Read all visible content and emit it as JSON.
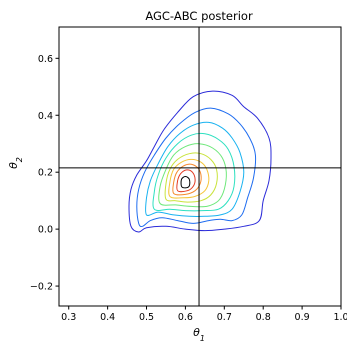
{
  "chart_data": {
    "type": "contour",
    "title": "AGC-ABC posterior",
    "xlabel": "θ1",
    "ylabel": "θ2",
    "xlim": [
      0.275,
      1.0
    ],
    "ylim": [
      -0.27,
      0.71
    ],
    "xticks": [
      "0.3",
      "0.4",
      "0.5",
      "0.6",
      "0.7",
      "0.8",
      "0.9",
      "1.0"
    ],
    "yticks": [
      "−0.2",
      "0.0",
      "0.2",
      "0.4",
      "0.6"
    ],
    "grid": false,
    "reference_lines": {
      "x": 0.635,
      "y": 0.215
    },
    "density_peak": {
      "x": 0.6,
      "y": 0.165
    },
    "contour_colors": [
      "#2b2bd9",
      "#1e6cf0",
      "#18b2f0",
      "#2de0c0",
      "#6ee87a",
      "#c9e33a",
      "#f5c53a",
      "#f58a2e",
      "#e33a22",
      "#000000"
    ],
    "contours": [
      {
        "level": 1,
        "color": "#2b2bd9",
        "points": [
          [
            0.46,
            0.01
          ],
          [
            0.455,
            0.08
          ],
          [
            0.46,
            0.14
          ],
          [
            0.475,
            0.19
          ],
          [
            0.5,
            0.24
          ],
          [
            0.52,
            0.29
          ],
          [
            0.545,
            0.35
          ],
          [
            0.58,
            0.41
          ],
          [
            0.62,
            0.465
          ],
          [
            0.67,
            0.485
          ],
          [
            0.72,
            0.47
          ],
          [
            0.75,
            0.43
          ],
          [
            0.785,
            0.39
          ],
          [
            0.815,
            0.32
          ],
          [
            0.82,
            0.25
          ],
          [
            0.815,
            0.17
          ],
          [
            0.8,
            0.1
          ],
          [
            0.79,
            0.03
          ],
          [
            0.75,
            0.01
          ],
          [
            0.7,
            0.0
          ],
          [
            0.65,
            -0.005
          ],
          [
            0.6,
            0.0
          ],
          [
            0.55,
            0.01
          ],
          [
            0.5,
            0.005
          ],
          [
            0.48,
            -0.01
          ]
        ]
      },
      {
        "level": 2,
        "color": "#1e6cf0",
        "points": [
          [
            0.48,
            0.02
          ],
          [
            0.475,
            0.08
          ],
          [
            0.48,
            0.14
          ],
          [
            0.495,
            0.2
          ],
          [
            0.52,
            0.26
          ],
          [
            0.55,
            0.32
          ],
          [
            0.585,
            0.37
          ],
          [
            0.625,
            0.41
          ],
          [
            0.665,
            0.425
          ],
          [
            0.71,
            0.405
          ],
          [
            0.74,
            0.37
          ],
          [
            0.765,
            0.32
          ],
          [
            0.78,
            0.26
          ],
          [
            0.775,
            0.18
          ],
          [
            0.76,
            0.11
          ],
          [
            0.745,
            0.05
          ],
          [
            0.72,
            0.03
          ],
          [
            0.69,
            0.035
          ],
          [
            0.66,
            0.03
          ],
          [
            0.62,
            0.02
          ],
          [
            0.58,
            0.03
          ],
          [
            0.54,
            0.04
          ],
          [
            0.51,
            0.03
          ],
          [
            0.49,
            0.01
          ]
        ]
      },
      {
        "level": 3,
        "color": "#18b2f0",
        "points": [
          [
            0.5,
            0.05
          ],
          [
            0.5,
            0.11
          ],
          [
            0.51,
            0.17
          ],
          [
            0.53,
            0.23
          ],
          [
            0.555,
            0.29
          ],
          [
            0.585,
            0.335
          ],
          [
            0.62,
            0.365
          ],
          [
            0.66,
            0.375
          ],
          [
            0.695,
            0.355
          ],
          [
            0.72,
            0.32
          ],
          [
            0.74,
            0.27
          ],
          [
            0.75,
            0.2
          ],
          [
            0.74,
            0.13
          ],
          [
            0.72,
            0.07
          ],
          [
            0.69,
            0.05
          ],
          [
            0.65,
            0.045
          ],
          [
            0.61,
            0.045
          ],
          [
            0.57,
            0.05
          ],
          [
            0.53,
            0.06
          ]
        ]
      },
      {
        "level": 4,
        "color": "#2de0c0",
        "points": [
          [
            0.52,
            0.07
          ],
          [
            0.52,
            0.13
          ],
          [
            0.53,
            0.19
          ],
          [
            0.55,
            0.25
          ],
          [
            0.58,
            0.3
          ],
          [
            0.615,
            0.33
          ],
          [
            0.65,
            0.335
          ],
          [
            0.685,
            0.315
          ],
          [
            0.71,
            0.28
          ],
          [
            0.725,
            0.22
          ],
          [
            0.725,
            0.15
          ],
          [
            0.71,
            0.1
          ],
          [
            0.685,
            0.07
          ],
          [
            0.645,
            0.065
          ],
          [
            0.6,
            0.065
          ],
          [
            0.56,
            0.07
          ]
        ]
      },
      {
        "level": 5,
        "color": "#6ee87a",
        "points": [
          [
            0.535,
            0.09
          ],
          [
            0.535,
            0.15
          ],
          [
            0.55,
            0.21
          ],
          [
            0.57,
            0.26
          ],
          [
            0.6,
            0.29
          ],
          [
            0.635,
            0.3
          ],
          [
            0.67,
            0.285
          ],
          [
            0.695,
            0.25
          ],
          [
            0.705,
            0.2
          ],
          [
            0.7,
            0.14
          ],
          [
            0.685,
            0.1
          ],
          [
            0.655,
            0.08
          ],
          [
            0.615,
            0.08
          ],
          [
            0.575,
            0.085
          ]
        ]
      },
      {
        "level": 6,
        "color": "#c9e33a",
        "points": [
          [
            0.55,
            0.105
          ],
          [
            0.55,
            0.16
          ],
          [
            0.56,
            0.21
          ],
          [
            0.58,
            0.245
          ],
          [
            0.61,
            0.265
          ],
          [
            0.64,
            0.265
          ],
          [
            0.665,
            0.245
          ],
          [
            0.68,
            0.21
          ],
          [
            0.68,
            0.16
          ],
          [
            0.665,
            0.12
          ],
          [
            0.64,
            0.1
          ],
          [
            0.605,
            0.095
          ],
          [
            0.575,
            0.1
          ]
        ]
      },
      {
        "level": 7,
        "color": "#f5c53a",
        "points": [
          [
            0.56,
            0.115
          ],
          [
            0.56,
            0.165
          ],
          [
            0.57,
            0.21
          ],
          [
            0.59,
            0.235
          ],
          [
            0.615,
            0.245
          ],
          [
            0.64,
            0.235
          ],
          [
            0.655,
            0.21
          ],
          [
            0.66,
            0.17
          ],
          [
            0.65,
            0.135
          ],
          [
            0.625,
            0.115
          ],
          [
            0.595,
            0.11
          ]
        ]
      },
      {
        "level": 8,
        "color": "#f58a2e",
        "points": [
          [
            0.57,
            0.125
          ],
          [
            0.57,
            0.165
          ],
          [
            0.578,
            0.2
          ],
          [
            0.595,
            0.222
          ],
          [
            0.615,
            0.228
          ],
          [
            0.632,
            0.215
          ],
          [
            0.64,
            0.19
          ],
          [
            0.638,
            0.16
          ],
          [
            0.625,
            0.135
          ],
          [
            0.6,
            0.122
          ]
        ]
      },
      {
        "level": 9,
        "color": "#e33a22",
        "points": [
          [
            0.58,
            0.135
          ],
          [
            0.58,
            0.17
          ],
          [
            0.588,
            0.195
          ],
          [
            0.603,
            0.208
          ],
          [
            0.618,
            0.2
          ],
          [
            0.625,
            0.175
          ],
          [
            0.62,
            0.15
          ],
          [
            0.605,
            0.135
          ]
        ]
      },
      {
        "level": 10,
        "color": "#000000",
        "points": [
          [
            0.59,
            0.15
          ],
          [
            0.59,
            0.175
          ],
          [
            0.6,
            0.185
          ],
          [
            0.61,
            0.175
          ],
          [
            0.61,
            0.152
          ],
          [
            0.6,
            0.145
          ]
        ]
      }
    ]
  }
}
